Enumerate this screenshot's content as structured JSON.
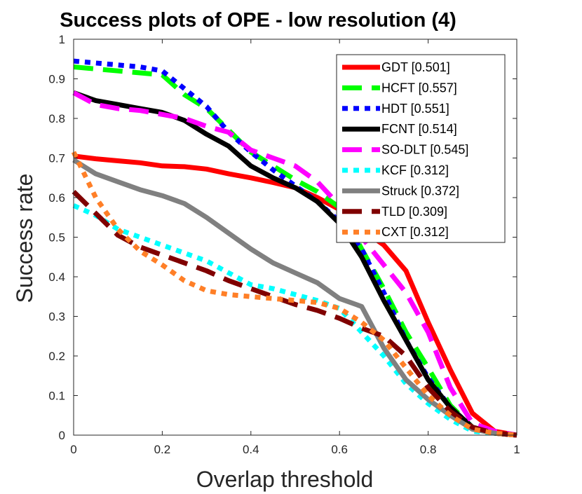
{
  "chart_data": {
    "type": "line",
    "title": "Success plots of OPE - low resolution (4)",
    "xlabel": "Overlap threshold",
    "ylabel": "Success rate",
    "xlim": [
      0,
      1
    ],
    "ylim": [
      0,
      1
    ],
    "xticks": [
      "0",
      "0.2",
      "0.4",
      "0.6",
      "0.8",
      "1"
    ],
    "yticks": [
      "0",
      "0.1",
      "0.2",
      "0.3",
      "0.4",
      "0.5",
      "0.6",
      "0.7",
      "0.8",
      "0.9",
      "1"
    ],
    "legend_position": "top-right",
    "grid": false,
    "series": [
      {
        "name": "GDT [0.501]",
        "color": "#ff0000",
        "style": "solid",
        "x": [
          0,
          0.05,
          0.1,
          0.15,
          0.2,
          0.25,
          0.3,
          0.35,
          0.4,
          0.45,
          0.5,
          0.55,
          0.6,
          0.65,
          0.7,
          0.75,
          0.8,
          0.85,
          0.9,
          0.95,
          1
        ],
        "y": [
          0.705,
          0.698,
          0.693,
          0.688,
          0.68,
          0.678,
          0.672,
          0.66,
          0.65,
          0.638,
          0.625,
          0.6,
          0.57,
          0.52,
          0.48,
          0.415,
          0.285,
          0.165,
          0.055,
          0.01,
          0
        ]
      },
      {
        "name": "HCFT [0.557]",
        "color": "#00ff00",
        "style": "dashed",
        "x": [
          0,
          0.05,
          0.1,
          0.15,
          0.2,
          0.25,
          0.3,
          0.35,
          0.4,
          0.45,
          0.5,
          0.55,
          0.6,
          0.65,
          0.7,
          0.75,
          0.8,
          0.85,
          0.9,
          0.95,
          1
        ],
        "y": [
          0.93,
          0.925,
          0.92,
          0.915,
          0.91,
          0.86,
          0.825,
          0.77,
          0.715,
          0.68,
          0.645,
          0.615,
          0.575,
          0.47,
          0.37,
          0.26,
          0.17,
          0.075,
          0.02,
          0.005,
          0
        ]
      },
      {
        "name": "HDT [0.551]",
        "color": "#0000ff",
        "style": "dotted",
        "x": [
          0,
          0.05,
          0.1,
          0.15,
          0.2,
          0.25,
          0.3,
          0.35,
          0.4,
          0.45,
          0.5,
          0.55,
          0.6,
          0.65,
          0.7,
          0.75,
          0.8,
          0.85,
          0.9,
          0.95,
          1
        ],
        "y": [
          0.945,
          0.94,
          0.935,
          0.93,
          0.92,
          0.875,
          0.83,
          0.765,
          0.715,
          0.67,
          0.63,
          0.59,
          0.54,
          0.47,
          0.36,
          0.24,
          0.145,
          0.07,
          0.02,
          0.005,
          0
        ]
      },
      {
        "name": "FCNT [0.514]",
        "color": "#000000",
        "style": "solid",
        "x": [
          0,
          0.05,
          0.1,
          0.15,
          0.2,
          0.25,
          0.3,
          0.35,
          0.4,
          0.45,
          0.5,
          0.55,
          0.6,
          0.65,
          0.7,
          0.75,
          0.8,
          0.85,
          0.9,
          0.95,
          1
        ],
        "y": [
          0.865,
          0.845,
          0.835,
          0.825,
          0.815,
          0.795,
          0.76,
          0.73,
          0.68,
          0.65,
          0.625,
          0.59,
          0.535,
          0.45,
          0.34,
          0.24,
          0.14,
          0.07,
          0.02,
          0.005,
          0
        ]
      },
      {
        "name": "SO-DLT [0.545]",
        "color": "#ff00ff",
        "style": "dashed",
        "x": [
          0,
          0.05,
          0.1,
          0.15,
          0.2,
          0.25,
          0.3,
          0.35,
          0.4,
          0.45,
          0.5,
          0.55,
          0.6,
          0.65,
          0.7,
          0.75,
          0.8,
          0.85,
          0.9,
          0.95,
          1
        ],
        "y": [
          0.865,
          0.835,
          0.825,
          0.82,
          0.81,
          0.8,
          0.78,
          0.765,
          0.72,
          0.7,
          0.68,
          0.64,
          0.58,
          0.5,
          0.43,
          0.36,
          0.26,
          0.12,
          0.03,
          0.01,
          0
        ]
      },
      {
        "name": "KCF [0.312]",
        "color": "#00ffff",
        "style": "dotted",
        "x": [
          0,
          0.05,
          0.1,
          0.15,
          0.2,
          0.25,
          0.3,
          0.35,
          0.4,
          0.45,
          0.5,
          0.55,
          0.6,
          0.65,
          0.7,
          0.75,
          0.8,
          0.85,
          0.9,
          0.95,
          1
        ],
        "y": [
          0.58,
          0.555,
          0.52,
          0.5,
          0.48,
          0.46,
          0.44,
          0.41,
          0.38,
          0.37,
          0.355,
          0.34,
          0.32,
          0.26,
          0.2,
          0.13,
          0.08,
          0.04,
          0.01,
          0.005,
          0
        ]
      },
      {
        "name": "Struck [0.372]",
        "color": "#808080",
        "style": "solid",
        "x": [
          0,
          0.05,
          0.1,
          0.15,
          0.2,
          0.25,
          0.3,
          0.35,
          0.4,
          0.45,
          0.5,
          0.55,
          0.6,
          0.65,
          0.7,
          0.75,
          0.8,
          0.85,
          0.9,
          0.95,
          1
        ],
        "y": [
          0.695,
          0.66,
          0.64,
          0.62,
          0.605,
          0.585,
          0.55,
          0.51,
          0.47,
          0.435,
          0.41,
          0.385,
          0.345,
          0.325,
          0.22,
          0.14,
          0.09,
          0.05,
          0.015,
          0.005,
          0
        ]
      },
      {
        "name": "TLD [0.309]",
        "color": "#800000",
        "style": "dashed",
        "x": [
          0,
          0.05,
          0.1,
          0.15,
          0.2,
          0.25,
          0.3,
          0.35,
          0.4,
          0.45,
          0.5,
          0.55,
          0.6,
          0.65,
          0.7,
          0.75,
          0.8,
          0.85,
          0.9,
          0.95,
          1
        ],
        "y": [
          0.615,
          0.56,
          0.505,
          0.475,
          0.455,
          0.435,
          0.415,
          0.39,
          0.37,
          0.35,
          0.33,
          0.315,
          0.295,
          0.27,
          0.25,
          0.2,
          0.12,
          0.06,
          0.02,
          0.005,
          0
        ]
      },
      {
        "name": "CXT [0.312]",
        "color": "#ff7f27",
        "style": "dotted",
        "x": [
          0,
          0.05,
          0.1,
          0.15,
          0.2,
          0.25,
          0.3,
          0.35,
          0.4,
          0.45,
          0.5,
          0.55,
          0.6,
          0.65,
          0.7,
          0.75,
          0.8,
          0.85,
          0.9,
          0.95,
          1
        ],
        "y": [
          0.715,
          0.6,
          0.52,
          0.465,
          0.43,
          0.39,
          0.365,
          0.355,
          0.35,
          0.345,
          0.34,
          0.335,
          0.32,
          0.285,
          0.24,
          0.17,
          0.1,
          0.05,
          0.015,
          0.005,
          0
        ]
      }
    ]
  }
}
